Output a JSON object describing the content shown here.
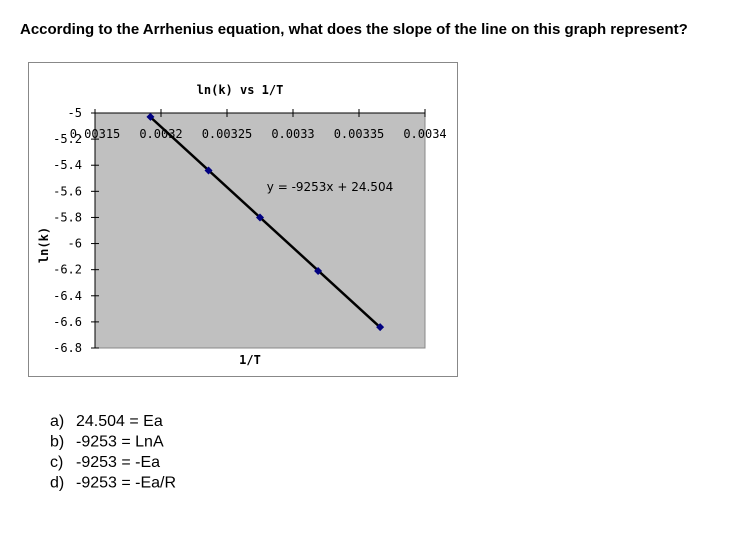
{
  "question": "According to the Arrhenius equation, what does the slope of the line on this graph represent?",
  "options": [
    {
      "letter": "a)",
      "text": "24.504 = Ea"
    },
    {
      "letter": "b)",
      "text": "-9253 = LnA"
    },
    {
      "letter": "c)",
      "text": "-9253 = -Ea"
    },
    {
      "letter": "d)",
      "text": "-9253 = -Ea/R"
    }
  ],
  "chart_data": {
    "type": "scatter",
    "title": "ln(k) vs 1/T",
    "x_label": "1/T",
    "y_label": "ln(k)",
    "x": [
      0.003192,
      0.003236,
      0.003275,
      0.003319,
      0.003366
    ],
    "series": [
      {
        "name": "ln(k)",
        "color": "#000080",
        "values": [
          -5.03,
          -5.44,
          -5.8,
          -6.21,
          -6.64
        ]
      }
    ],
    "xlim": [
      0.00315,
      0.0034
    ],
    "xticks": [
      0.00315,
      0.0032,
      0.00325,
      0.0033,
      0.00335,
      0.0034
    ],
    "ylim": [
      -6.8,
      -5
    ],
    "yticks": [
      -5,
      -5.2,
      -5.4,
      -5.6,
      -5.8,
      -6,
      -6.2,
      -6.4,
      -6.6,
      -6.8
    ],
    "plot_background": "#c0c0c0",
    "trendline": {
      "slope": -9253,
      "intercept": 24.504,
      "label": "y = -9253x + 24.504",
      "color": "#000000"
    }
  }
}
